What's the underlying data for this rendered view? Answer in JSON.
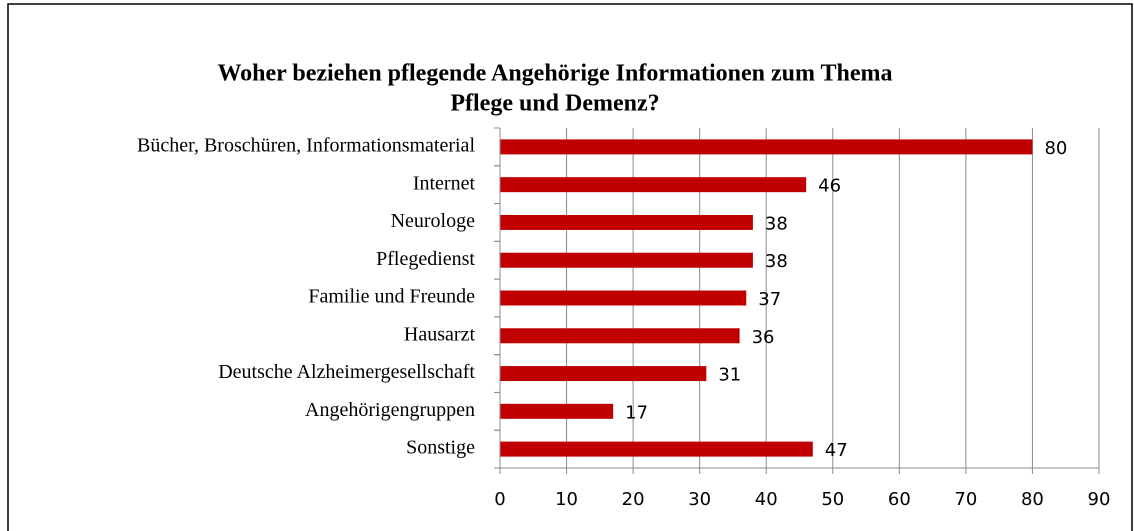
{
  "chart_data": {
    "type": "bar",
    "orientation": "horizontal",
    "title": [
      "Woher beziehen pflegende Angehörige Informationen zum Thema",
      "Pflege und Demenz?"
    ],
    "categories": [
      "Bücher, Broschüren, Informationsmaterial",
      "Internet",
      "Neurologe",
      "Pflegedienst",
      "Familie und Freunde",
      "Hausarzt",
      "Deutsche Alzheimergesellschaft",
      "Angehörigengruppen",
      "Sonstige"
    ],
    "values": [
      80,
      46,
      38,
      38,
      37,
      36,
      31,
      17,
      47
    ],
    "color": "#c00000",
    "xlim": [
      0,
      90
    ],
    "xticks": [
      0,
      10,
      20,
      30,
      40,
      50,
      60,
      70,
      80,
      90
    ],
    "grid": true
  }
}
